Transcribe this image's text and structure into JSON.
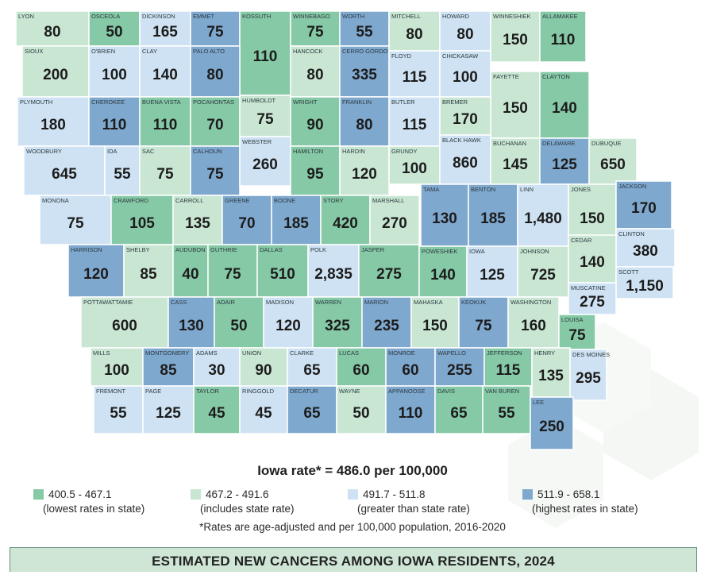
{
  "colors": {
    "lowest": "#86c9a6",
    "includes": "#c9e6d3",
    "greater": "#cfe2f3",
    "highest": "#7fa8cf"
  },
  "counties": [
    {
      "name": "LYON",
      "value": "80",
      "cat": "includes"
    },
    {
      "name": "OSCEOLA",
      "value": "50",
      "cat": "lowest"
    },
    {
      "name": "DICKINSON",
      "value": "165",
      "cat": "greater"
    },
    {
      "name": "EMMET",
      "value": "75",
      "cat": "highest"
    },
    {
      "name": "KOSSUTH",
      "value": "110",
      "cat": "lowest"
    },
    {
      "name": "WINNEBAGO",
      "value": "75",
      "cat": "lowest"
    },
    {
      "name": "WORTH",
      "value": "55",
      "cat": "highest"
    },
    {
      "name": "MITCHELL",
      "value": "80",
      "cat": "includes"
    },
    {
      "name": "HOWARD",
      "value": "80",
      "cat": "greater"
    },
    {
      "name": "WINNESHIEK",
      "value": "150",
      "cat": "includes"
    },
    {
      "name": "ALLAMAKEE",
      "value": "110",
      "cat": "lowest"
    },
    {
      "name": "SIOUX",
      "value": "200",
      "cat": "includes"
    },
    {
      "name": "O'BRIEN",
      "value": "100",
      "cat": "greater"
    },
    {
      "name": "CLAY",
      "value": "140",
      "cat": "greater"
    },
    {
      "name": "PALO ALTO",
      "value": "80",
      "cat": "highest"
    },
    {
      "name": "HANCOCK",
      "value": "80",
      "cat": "includes"
    },
    {
      "name": "CERRO GORDO",
      "value": "335",
      "cat": "highest"
    },
    {
      "name": "FLOYD",
      "value": "115",
      "cat": "greater"
    },
    {
      "name": "CHICKASAW",
      "value": "100",
      "cat": "greater"
    },
    {
      "name": "FAYETTE",
      "value": "150",
      "cat": "includes"
    },
    {
      "name": "CLAYTON",
      "value": "140",
      "cat": "lowest"
    },
    {
      "name": "PLYMOUTH",
      "value": "180",
      "cat": "greater"
    },
    {
      "name": "CHEROKEE",
      "value": "110",
      "cat": "highest"
    },
    {
      "name": "BUENA VISTA",
      "value": "110",
      "cat": "lowest"
    },
    {
      "name": "POCAHONTAS",
      "value": "70",
      "cat": "lowest"
    },
    {
      "name": "HUMBOLDT",
      "value": "75",
      "cat": "includes"
    },
    {
      "name": "WRIGHT",
      "value": "90",
      "cat": "lowest"
    },
    {
      "name": "FRANKLIN",
      "value": "80",
      "cat": "highest"
    },
    {
      "name": "BUTLER",
      "value": "115",
      "cat": "greater"
    },
    {
      "name": "BREMER",
      "value": "170",
      "cat": "includes"
    },
    {
      "name": "WOODBURY",
      "value": "645",
      "cat": "greater"
    },
    {
      "name": "IDA",
      "value": "55",
      "cat": "greater"
    },
    {
      "name": "SAC",
      "value": "75",
      "cat": "includes"
    },
    {
      "name": "CALHOUN",
      "value": "75",
      "cat": "highest"
    },
    {
      "name": "WEBSTER",
      "value": "260",
      "cat": "greater"
    },
    {
      "name": "HAMILTON",
      "value": "95",
      "cat": "lowest"
    },
    {
      "name": "HARDIN",
      "value": "120",
      "cat": "includes"
    },
    {
      "name": "GRUNDY",
      "value": "100",
      "cat": "includes"
    },
    {
      "name": "BLACK HAWK",
      "value": "860",
      "cat": "greater"
    },
    {
      "name": "BUCHANAN",
      "value": "145",
      "cat": "includes"
    },
    {
      "name": "DELAWARE",
      "value": "125",
      "cat": "highest"
    },
    {
      "name": "DUBUQUE",
      "value": "650",
      "cat": "includes"
    },
    {
      "name": "MONONA",
      "value": "75",
      "cat": "greater"
    },
    {
      "name": "CRAWFORD",
      "value": "105",
      "cat": "lowest"
    },
    {
      "name": "CARROLL",
      "value": "135",
      "cat": "includes"
    },
    {
      "name": "GREENE",
      "value": "70",
      "cat": "highest"
    },
    {
      "name": "BOONE",
      "value": "185",
      "cat": "highest"
    },
    {
      "name": "STORY",
      "value": "420",
      "cat": "lowest"
    },
    {
      "name": "MARSHALL",
      "value": "270",
      "cat": "includes"
    },
    {
      "name": "TAMA",
      "value": "130",
      "cat": "highest"
    },
    {
      "name": "BENTON",
      "value": "185",
      "cat": "highest"
    },
    {
      "name": "LINN",
      "value": "1,480",
      "cat": "greater"
    },
    {
      "name": "JONES",
      "value": "150",
      "cat": "includes"
    },
    {
      "name": "JACKSON",
      "value": "170",
      "cat": "highest"
    },
    {
      "name": "CLINTON",
      "value": "380",
      "cat": "greater"
    },
    {
      "name": "HARRISON",
      "value": "120",
      "cat": "highest"
    },
    {
      "name": "SHELBY",
      "value": "85",
      "cat": "includes"
    },
    {
      "name": "AUDUBON",
      "value": "40",
      "cat": "lowest"
    },
    {
      "name": "GUTHRIE",
      "value": "75",
      "cat": "lowest"
    },
    {
      "name": "DALLAS",
      "value": "510",
      "cat": "lowest"
    },
    {
      "name": "POLK",
      "value": "2,835",
      "cat": "greater"
    },
    {
      "name": "JASPER",
      "value": "275",
      "cat": "lowest"
    },
    {
      "name": "POWESHIEK",
      "value": "140",
      "cat": "lowest"
    },
    {
      "name": "IOWA",
      "value": "125",
      "cat": "greater"
    },
    {
      "name": "JOHNSON",
      "value": "725",
      "cat": "includes"
    },
    {
      "name": "CEDAR",
      "value": "140",
      "cat": "includes"
    },
    {
      "name": "SCOTT",
      "value": "1,150",
      "cat": "greater"
    },
    {
      "name": "MUSCATINE",
      "value": "275",
      "cat": "greater"
    },
    {
      "name": "POTTAWATTAMIE",
      "value": "600",
      "cat": "includes"
    },
    {
      "name": "CASS",
      "value": "130",
      "cat": "highest"
    },
    {
      "name": "ADAIR",
      "value": "50",
      "cat": "lowest"
    },
    {
      "name": "MADISON",
      "value": "120",
      "cat": "greater"
    },
    {
      "name": "WARREN",
      "value": "325",
      "cat": "lowest"
    },
    {
      "name": "MARION",
      "value": "235",
      "cat": "highest"
    },
    {
      "name": "MAHASKA",
      "value": "150",
      "cat": "includes"
    },
    {
      "name": "KEOKUK",
      "value": "75",
      "cat": "highest"
    },
    {
      "name": "WASHINGTON",
      "value": "160",
      "cat": "includes"
    },
    {
      "name": "LOUISA",
      "value": "75",
      "cat": "lowest"
    },
    {
      "name": "MILLS",
      "value": "100",
      "cat": "includes"
    },
    {
      "name": "MONTGOMERY",
      "value": "85",
      "cat": "highest"
    },
    {
      "name": "ADAMS",
      "value": "30",
      "cat": "greater"
    },
    {
      "name": "UNION",
      "value": "90",
      "cat": "includes"
    },
    {
      "name": "CLARKE",
      "value": "65",
      "cat": "greater"
    },
    {
      "name": "LUCAS",
      "value": "60",
      "cat": "lowest"
    },
    {
      "name": "MONROE",
      "value": "60",
      "cat": "highest"
    },
    {
      "name": "WAPELLO",
      "value": "255",
      "cat": "highest"
    },
    {
      "name": "JEFFERSON",
      "value": "115",
      "cat": "lowest"
    },
    {
      "name": "HENRY",
      "value": "135",
      "cat": "includes"
    },
    {
      "name": "DES MOINES",
      "value": "295",
      "cat": "greater"
    },
    {
      "name": "FREMONT",
      "value": "55",
      "cat": "greater"
    },
    {
      "name": "PAGE",
      "value": "125",
      "cat": "greater"
    },
    {
      "name": "TAYLOR",
      "value": "45",
      "cat": "lowest"
    },
    {
      "name": "RINGGOLD",
      "value": "45",
      "cat": "greater"
    },
    {
      "name": "DECATUR",
      "value": "65",
      "cat": "highest"
    },
    {
      "name": "WAYNE",
      "value": "50",
      "cat": "includes"
    },
    {
      "name": "APPANOOSE",
      "value": "110",
      "cat": "highest"
    },
    {
      "name": "DAVIS",
      "value": "65",
      "cat": "lowest"
    },
    {
      "name": "VAN BUREN",
      "value": "55",
      "cat": "lowest"
    },
    {
      "name": "LEE",
      "value": "250",
      "cat": "highest"
    }
  ],
  "state_rate": "Iowa rate* = 486.0 per 100,000",
  "legend": [
    {
      "range": "400.5 - 467.1",
      "desc": "(lowest rates in state)",
      "cat": "lowest"
    },
    {
      "range": "467.2 - 491.6",
      "desc": "(includes state rate)",
      "cat": "includes"
    },
    {
      "range": "491.7 - 511.8",
      "desc": "(greater than state rate)",
      "cat": "greater"
    },
    {
      "range": "511.9 - 658.1",
      "desc": "(highest rates in state)",
      "cat": "highest"
    }
  ],
  "footnote": "*Rates are age-adjusted and per 100,000 population, 2016-2020",
  "banner": "ESTIMATED NEW CANCERS AMONG IOWA RESIDENTS, 2024"
}
